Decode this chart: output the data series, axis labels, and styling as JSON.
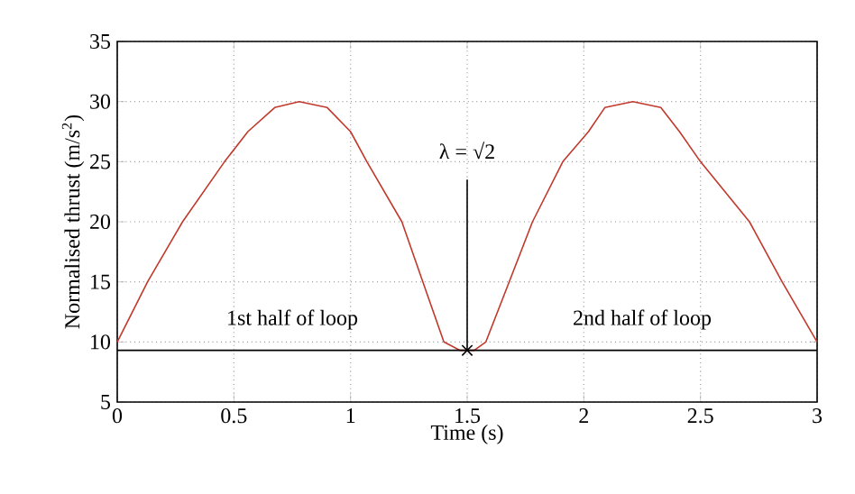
{
  "chart_data": {
    "type": "line",
    "xlabel": "Time (s)",
    "ylabel": "Normalised thrust (m/s$^{2}$)",
    "xlim": [
      0,
      3
    ],
    "ylim": [
      5,
      35
    ],
    "xticks": [
      0,
      0.5,
      1,
      1.5,
      2,
      2.5,
      3
    ],
    "yticks": [
      5,
      10,
      15,
      20,
      25,
      30,
      35
    ],
    "grid": true,
    "marker": "none",
    "line_style": "solid",
    "series": [
      {
        "color": "#c0392b",
        "x": [
          0,
          0.13,
          0.28,
          0.46,
          0.56,
          0.675,
          0.78,
          0.9,
          1.0,
          1.07,
          1.22,
          1.31,
          1.4,
          1.47,
          1.53,
          1.58,
          1.68,
          1.78,
          1.91,
          2.02,
          2.09,
          2.21,
          2.33,
          2.41,
          2.5,
          2.71,
          2.85,
          3.0
        ],
        "values": [
          10,
          15,
          20,
          25,
          27.5,
          29.5,
          30,
          29.5,
          27.5,
          25,
          20,
          15,
          10,
          9.3,
          9.3,
          10,
          15,
          20,
          25,
          27.5,
          29.5,
          30,
          29.5,
          27.5,
          25,
          20,
          15,
          10
        ]
      },
      {
        "color": "#000000",
        "x": [
          0,
          1.5
        ],
        "values": [
          9.3,
          9.3
        ]
      },
      {
        "color": "#000000",
        "x": [
          1.5,
          3
        ],
        "values": [
          9.3,
          9.3
        ]
      },
      {
        "color": "#000000",
        "x": [
          1.5,
          1.5
        ],
        "values": [
          9.3,
          23.5
        ]
      },
      {
        "type": "scatter",
        "marker": "cross",
        "color": "#000000",
        "x": [
          1.5
        ],
        "values": [
          9.3
        ]
      }
    ],
    "annotations": [
      "1st half of loop",
      "2nd half of loop",
      "λ = √2"
    ]
  }
}
